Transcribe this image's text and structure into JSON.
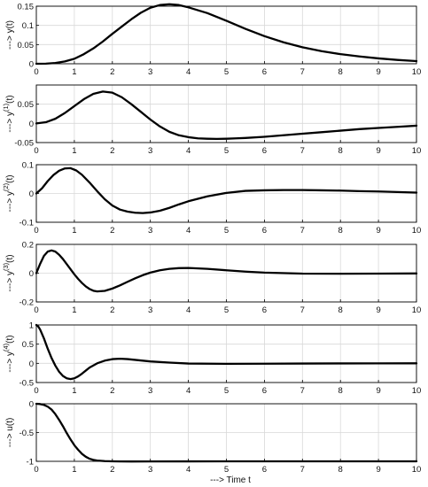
{
  "figure": {
    "xlabel": "---> Time t"
  },
  "chart_data": [
    {
      "type": "line",
      "ylabel": {
        "prefix": "---> y",
        "sup": "",
        "suffix": "(t)"
      },
      "xlim": [
        0,
        10
      ],
      "ylim": [
        0,
        0.15
      ],
      "xticks": [
        0,
        1,
        2,
        3,
        4,
        5,
        6,
        7,
        8,
        9,
        10
      ],
      "yticks": [
        0,
        0.05,
        0.1,
        0.15
      ],
      "ytick_labels": [
        "0",
        "0.05",
        "0.1",
        "0.15"
      ],
      "grid": true,
      "series": [
        {
          "x": [
            0,
            0.25,
            0.5,
            0.75,
            1,
            1.25,
            1.5,
            1.75,
            2,
            2.25,
            2.5,
            2.75,
            3,
            3.25,
            3.5,
            3.75,
            4,
            4.5,
            5,
            5.5,
            6,
            6.5,
            7,
            7.5,
            8,
            8.5,
            9,
            9.5,
            10
          ],
          "y": [
            0,
            0.0003,
            0.002,
            0.006,
            0.013,
            0.025,
            0.04,
            0.058,
            0.078,
            0.097,
            0.116,
            0.133,
            0.146,
            0.153,
            0.155,
            0.153,
            0.147,
            0.132,
            0.112,
            0.091,
            0.072,
            0.056,
            0.043,
            0.033,
            0.025,
            0.019,
            0.014,
            0.01,
            0.007
          ]
        }
      ]
    },
    {
      "type": "line",
      "ylabel": {
        "prefix": "---> y",
        "sup": "(1)",
        "suffix": "(t)"
      },
      "xlim": [
        0,
        10
      ],
      "ylim": [
        -0.05,
        0.1
      ],
      "xticks": [
        0,
        1,
        2,
        3,
        4,
        5,
        6,
        7,
        8,
        9,
        10
      ],
      "yticks": [
        -0.05,
        0,
        0.05
      ],
      "ytick_labels": [
        "-0.05",
        "0",
        "0.05"
      ],
      "grid": true,
      "series": [
        {
          "x": [
            0,
            0.25,
            0.5,
            0.75,
            1,
            1.25,
            1.5,
            1.75,
            2,
            2.25,
            2.5,
            2.75,
            3,
            3.25,
            3.5,
            3.75,
            4,
            4.25,
            4.5,
            4.75,
            5,
            5.25,
            5.5,
            6,
            6.5,
            7,
            7.5,
            8,
            8.5,
            9,
            9.5,
            10
          ],
          "y": [
            0,
            0.003,
            0.012,
            0.027,
            0.045,
            0.063,
            0.077,
            0.083,
            0.08,
            0.068,
            0.05,
            0.03,
            0.01,
            -0.008,
            -0.022,
            -0.031,
            -0.036,
            -0.039,
            -0.04,
            -0.0405,
            -0.04,
            -0.039,
            -0.038,
            -0.035,
            -0.031,
            -0.027,
            -0.023,
            -0.019,
            -0.015,
            -0.012,
            -0.009,
            -0.006
          ]
        }
      ]
    },
    {
      "type": "line",
      "ylabel": {
        "prefix": "---> y",
        "sup": "(2)",
        "suffix": "(t)"
      },
      "xlim": [
        0,
        10
      ],
      "ylim": [
        -0.1,
        0.1
      ],
      "xticks": [
        0,
        1,
        2,
        3,
        4,
        5,
        6,
        7,
        8,
        9,
        10
      ],
      "yticks": [
        -0.1,
        0,
        0.1
      ],
      "ytick_labels": [
        "-0.1",
        "0",
        "0.1"
      ],
      "grid": true,
      "series": [
        {
          "x": [
            0,
            0.15,
            0.3,
            0.45,
            0.6,
            0.75,
            0.9,
            1.05,
            1.2,
            1.4,
            1.6,
            1.8,
            2,
            2.2,
            2.4,
            2.6,
            2.8,
            3,
            3.25,
            3.5,
            3.75,
            4,
            4.5,
            5,
            5.5,
            6,
            6.5,
            7,
            7.5,
            8,
            8.5,
            9,
            9.5,
            10
          ],
          "y": [
            0,
            0.018,
            0.043,
            0.064,
            0.079,
            0.087,
            0.088,
            0.08,
            0.065,
            0.038,
            0.008,
            -0.02,
            -0.042,
            -0.056,
            -0.063,
            -0.067,
            -0.068,
            -0.066,
            -0.06,
            -0.05,
            -0.038,
            -0.027,
            -0.01,
            0.002,
            0.009,
            0.011,
            0.012,
            0.012,
            0.011,
            0.01,
            0.008,
            0.007,
            0.005,
            0.003
          ]
        }
      ]
    },
    {
      "type": "line",
      "ylabel": {
        "prefix": "---> y",
        "sup": "(3)",
        "suffix": "(t)"
      },
      "xlim": [
        0,
        10
      ],
      "ylim": [
        -0.2,
        0.2
      ],
      "xticks": [
        0,
        1,
        2,
        3,
        4,
        5,
        6,
        7,
        8,
        9,
        10
      ],
      "yticks": [
        -0.2,
        0,
        0.2
      ],
      "ytick_labels": [
        "-0.2",
        "0",
        "0.2"
      ],
      "grid": true,
      "series": [
        {
          "x": [
            0,
            0.1,
            0.2,
            0.3,
            0.4,
            0.5,
            0.6,
            0.7,
            0.8,
            0.9,
            1,
            1.1,
            1.2,
            1.3,
            1.4,
            1.5,
            1.6,
            1.8,
            2,
            2.2,
            2.4,
            2.6,
            2.8,
            3,
            3.25,
            3.5,
            3.75,
            4,
            4.5,
            5,
            5.5,
            6,
            7,
            8,
            9,
            10
          ],
          "y": [
            0,
            0.065,
            0.12,
            0.15,
            0.158,
            0.15,
            0.128,
            0.098,
            0.063,
            0.027,
            -0.008,
            -0.04,
            -0.068,
            -0.092,
            -0.11,
            -0.122,
            -0.127,
            -0.123,
            -0.107,
            -0.085,
            -0.06,
            -0.036,
            -0.014,
            0.004,
            0.02,
            0.03,
            0.035,
            0.036,
            0.03,
            0.02,
            0.011,
            0.004,
            -0.003,
            -0.004,
            -0.003,
            -0.002
          ]
        }
      ]
    },
    {
      "type": "line",
      "ylabel": {
        "prefix": "---> y",
        "sup": "(4)",
        "suffix": "(t)"
      },
      "xlim": [
        0,
        10
      ],
      "ylim": [
        -0.5,
        1
      ],
      "xticks": [
        0,
        1,
        2,
        3,
        4,
        5,
        6,
        7,
        8,
        9,
        10
      ],
      "yticks": [
        -0.5,
        0,
        0.5,
        1
      ],
      "ytick_labels": [
        "-0.5",
        "0",
        "0.5",
        "1"
      ],
      "grid": true,
      "series": [
        {
          "x": [
            0,
            0.05,
            0.1,
            0.2,
            0.3,
            0.4,
            0.5,
            0.6,
            0.7,
            0.8,
            0.9,
            1,
            1.1,
            1.2,
            1.3,
            1.4,
            1.6,
            1.8,
            2,
            2.2,
            2.4,
            2.6,
            2.8,
            3,
            3.5,
            4,
            5,
            6,
            7,
            8,
            9,
            10
          ],
          "y": [
            1,
            0.96,
            0.88,
            0.65,
            0.38,
            0.14,
            -0.06,
            -0.22,
            -0.33,
            -0.39,
            -0.41,
            -0.39,
            -0.34,
            -0.27,
            -0.19,
            -0.11,
            0,
            0.07,
            0.11,
            0.12,
            0.11,
            0.09,
            0.07,
            0.05,
            0.02,
            -0.005,
            -0.012,
            -0.01,
            -0.005,
            -0.002,
            -0.001,
            0
          ]
        }
      ]
    },
    {
      "type": "line",
      "ylabel": {
        "prefix": "---> u(t)",
        "sup": "",
        "suffix": ""
      },
      "xlim": [
        0,
        10
      ],
      "ylim": [
        -1,
        0
      ],
      "xticks": [
        0,
        1,
        2,
        3,
        4,
        5,
        6,
        7,
        8,
        9,
        10
      ],
      "yticks": [
        -1,
        -0.5,
        0
      ],
      "ytick_labels": [
        "-1",
        "-0.5",
        "0"
      ],
      "grid": true,
      "series": [
        {
          "x": [
            0,
            0.1,
            0.2,
            0.3,
            0.4,
            0.5,
            0.6,
            0.7,
            0.8,
            0.9,
            1,
            1.1,
            1.2,
            1.3,
            1.4,
            1.5,
            1.6,
            1.8,
            2,
            2.2,
            2.5,
            3,
            4,
            5,
            6,
            7,
            8,
            9,
            10
          ],
          "y": [
            0,
            -0.005,
            -0.02,
            -0.05,
            -0.1,
            -0.18,
            -0.28,
            -0.39,
            -0.51,
            -0.62,
            -0.72,
            -0.8,
            -0.87,
            -0.92,
            -0.955,
            -0.975,
            -0.987,
            -0.996,
            -1,
            -1.002,
            -1.003,
            -1.002,
            -1.001,
            -1,
            -1,
            -1,
            -1,
            -1,
            -1
          ]
        }
      ]
    }
  ]
}
